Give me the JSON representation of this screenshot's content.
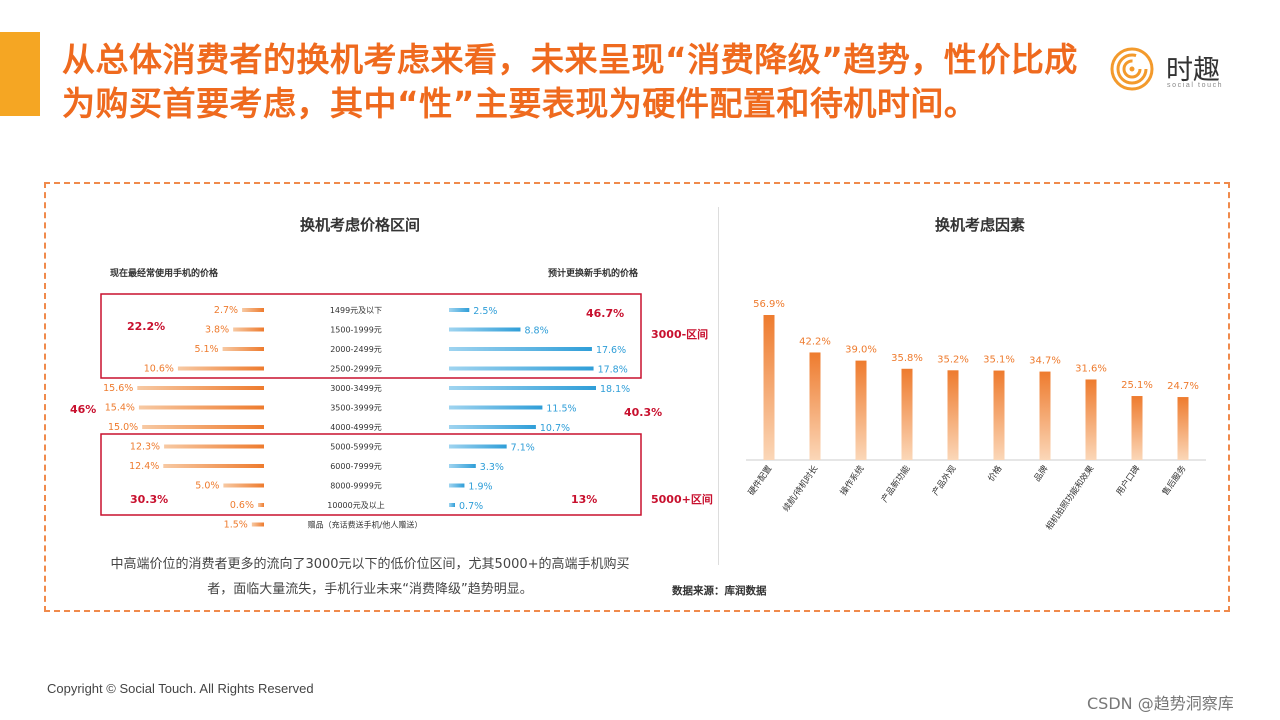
{
  "header": {
    "title": "从总体消费者的换机考虑来看，未来呈现“消费降级”趋势，性价比成为购买首要考虑，其中“性”主要表现为硬件配置和待机时间。",
    "logo_text": "时趣",
    "logo_sub": "social touch"
  },
  "colors": {
    "accent": "#f5a623",
    "title": "#ef6a1e",
    "orange_bar": "#f08a3a",
    "blue_bar": "#3aa5dc",
    "red_box": "#c8102e"
  },
  "left_panel": {
    "title": "换机考虑价格区间",
    "current_label": "现在最经常使用手机的价格",
    "future_label": "预计更换新手机的价格",
    "note": "中高端价位的消费者更多的流向了3000元以下的低价位区间，尤其5000+的高端手机购买者，面临大量流失，手机行业未来“消费降级”趋势明显。",
    "group_labels": {
      "low_current": "22.2%",
      "low_future": "46.7%",
      "low_name": "3000-区间",
      "mid_current": "46%",
      "mid_future": "40.3%",
      "high_current": "30.3%",
      "high_future": "13%",
      "high_name": "5000+区间"
    }
  },
  "right_panel": {
    "title": "换机考虑因素",
    "source": "数据来源：库润数据"
  },
  "chart_data": [
    {
      "type": "bar",
      "title": "换机考虑价格区间",
      "categories": [
        "1499元及以下",
        "1500-1999元",
        "2000-2499元",
        "2500-2999元",
        "3000-3499元",
        "3500-3999元",
        "4000-4999元",
        "5000-5999元",
        "6000-7999元",
        "8000-9999元",
        "10000元及以上",
        "赠品（充话费送手机/他人赠送）"
      ],
      "series": [
        {
          "name": "现在最经常使用手机的价格",
          "values": [
            2.7,
            3.8,
            5.1,
            10.6,
            15.6,
            15.4,
            15.0,
            12.3,
            12.4,
            5.0,
            0.6,
            1.5
          ],
          "labels": [
            "2.7%",
            "3.8%",
            "5.1%",
            "10.6%",
            "15.6%",
            "15.4%",
            "15.0%",
            "12.3%",
            "12.4%",
            "5.0%",
            "0.6%",
            "1.5%"
          ]
        },
        {
          "name": "预计更换新手机的价格",
          "values": [
            2.5,
            8.8,
            17.6,
            17.8,
            18.1,
            11.5,
            10.7,
            7.1,
            3.3,
            1.9,
            0.7,
            null
          ],
          "labels": [
            "2.5%",
            "8.8%",
            "17.6%",
            "17.8%",
            "18.1%",
            "11.5%",
            "10.7%",
            "7.1%",
            "3.3%",
            "1.9%",
            "0.7%",
            ""
          ]
        }
      ]
    },
    {
      "type": "bar",
      "title": "换机考虑因素",
      "categories": [
        "硬件配置",
        "续航/待机时长",
        "操作系统",
        "产品新功能",
        "产品外观",
        "价格",
        "品牌",
        "相机拍照功能和效果",
        "用户口碑",
        "售后服务"
      ],
      "values": [
        56.9,
        42.2,
        39.0,
        35.8,
        35.2,
        35.1,
        34.7,
        31.6,
        25.1,
        24.7
      ],
      "labels": [
        "56.9%",
        "42.2%",
        "39.0%",
        "35.8%",
        "35.2%",
        "35.1%",
        "34.7%",
        "31.6%",
        "25.1%",
        "24.7%"
      ]
    }
  ],
  "footer": {
    "copyright": "Copyright © Social Touch. All Rights Reserved",
    "watermark": "CSDN @趋势洞察库"
  }
}
